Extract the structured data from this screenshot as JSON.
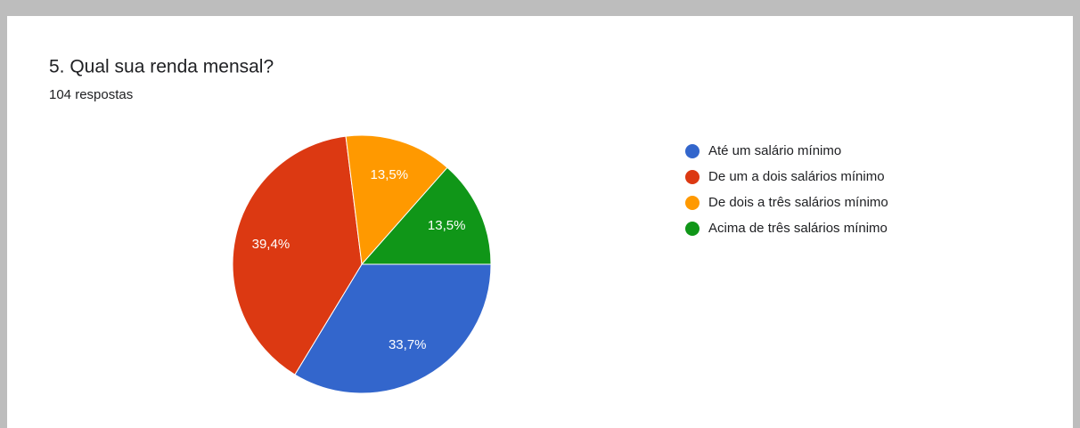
{
  "chart_data": {
    "type": "pie",
    "title": "5. Qual sua renda mensal?",
    "subtitle": "104 respostas",
    "categories": [
      "Até um salário mínimo",
      "De um a dois salários mínimo",
      "De dois a três salários mínimo",
      "Acima de três salários mínimo"
    ],
    "values": [
      33.7,
      39.4,
      13.5,
      13.5
    ],
    "value_labels": [
      "33,7%",
      "39,4%",
      "13,5%",
      "13,5%"
    ],
    "colors": [
      "#3366cc",
      "#dc3912",
      "#ff9900",
      "#109618"
    ],
    "legend": "right"
  }
}
